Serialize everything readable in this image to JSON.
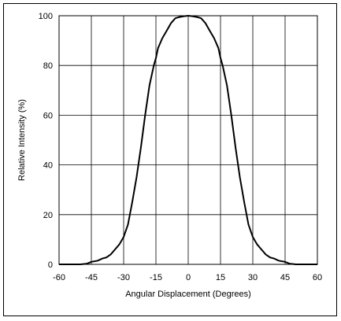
{
  "chart_data": {
    "type": "line",
    "xlabel": "Angular Displacement (Degrees)",
    "ylabel": "Relative Intensity (%)",
    "xlim": [
      -60,
      60
    ],
    "ylim": [
      0,
      100
    ],
    "xticks": [
      -60,
      -45,
      -30,
      -15,
      0,
      15,
      30,
      45,
      60
    ],
    "yticks": [
      0,
      20,
      40,
      60,
      80,
      100
    ],
    "grid": true,
    "legend": "none",
    "line_color": "#000000",
    "series": [
      {
        "x": [
          -60,
          -50,
          -47,
          -45,
          -42,
          -40,
          -38,
          -36,
          -34,
          -32,
          -30,
          -28,
          -26,
          -24,
          -22,
          -20,
          -18,
          -16,
          -15,
          -14,
          -12,
          -10,
          -8,
          -6,
          -4,
          -2,
          0,
          2,
          4,
          6,
          8,
          10,
          12,
          14,
          15,
          16,
          18,
          20,
          22,
          24,
          26,
          28,
          30,
          32,
          34,
          36,
          38,
          40,
          42,
          45,
          47,
          50,
          60
        ],
        "y": [
          0,
          0,
          0.3,
          1,
          1.5,
          2.3,
          2.8,
          4,
          6,
          8,
          11,
          16,
          25,
          35,
          47,
          60,
          72,
          80,
          83,
          87,
          91,
          94,
          97,
          99,
          99.5,
          99.8,
          100,
          99.8,
          99.5,
          99,
          97,
          94,
          91,
          87,
          83,
          80,
          72,
          60,
          47,
          35,
          25,
          16,
          11,
          8,
          6,
          4,
          2.8,
          2.3,
          1.5,
          1,
          0.3,
          0,
          0
        ]
      }
    ]
  }
}
